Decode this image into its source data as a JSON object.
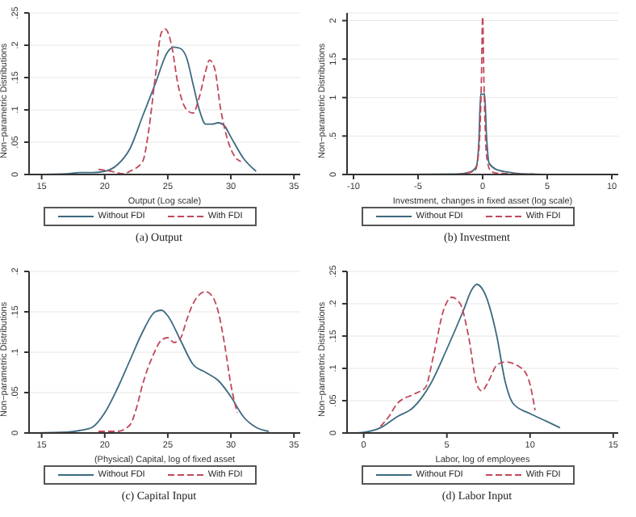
{
  "chart_data": [
    {
      "type": "line",
      "title": "(a) Output",
      "xlabel": "Output (Log scale)",
      "ylabel": "Non−parametric Distributions",
      "xlim": [
        14,
        35.5
      ],
      "xticks": [
        15,
        20,
        25,
        30,
        35
      ],
      "ylim": [
        0,
        0.25
      ],
      "yticks": [
        0,
        {
          "value": 0.05,
          "label": ".05"
        },
        {
          "value": 0.1,
          "label": ".1"
        },
        {
          "value": 0.15,
          "label": ".15"
        },
        {
          "value": 0.2,
          "label": ".2"
        },
        {
          "value": 0.25,
          "label": ".25"
        }
      ],
      "grid": "y",
      "legend": "bottom",
      "series": [
        {
          "name": "Without FDI",
          "color": "#3d6a80",
          "line_style": "solid",
          "x": [
            14.5,
            17,
            18,
            19,
            20,
            21,
            22,
            23,
            24,
            25,
            25.5,
            26,
            26.5,
            27,
            27.5,
            28,
            28.5,
            29,
            29.5,
            30,
            31,
            32
          ],
          "values": [
            0,
            0.001,
            0.003,
            0.003,
            0.005,
            0.015,
            0.04,
            0.09,
            0.14,
            0.19,
            0.197,
            0.195,
            0.18,
            0.14,
            0.1,
            0.078,
            0.078,
            0.08,
            0.075,
            0.058,
            0.025,
            0.005
          ]
        },
        {
          "name": "With FDI",
          "color": "#c0485a",
          "line_style": "dashed",
          "x": [
            19.5,
            20.5,
            21.5,
            22,
            23,
            23.5,
            24,
            24.5,
            24.8,
            25.3,
            25.8,
            26.5,
            27,
            27.5,
            28,
            28.3,
            28.7,
            29.2,
            29.8,
            30.3,
            30.8
          ],
          "values": [
            0.008,
            0.005,
            0.001,
            0.005,
            0.02,
            0.07,
            0.15,
            0.22,
            0.225,
            0.2,
            0.14,
            0.1,
            0.095,
            0.12,
            0.16,
            0.177,
            0.165,
            0.1,
            0.05,
            0.028,
            0.02
          ]
        }
      ]
    },
    {
      "type": "line",
      "title": "(b) Investment",
      "xlabel": "Investment, changes in fixed asset (log scale)",
      "ylabel": "Non−parametric Distributions",
      "xlim": [
        -10.5,
        10.5
      ],
      "xticks": [
        -10,
        -5,
        0,
        5,
        10
      ],
      "ylim": [
        0,
        2.1
      ],
      "yticks": [
        0,
        {
          "value": 0.5,
          "label": ".5"
        },
        1,
        1.5,
        2
      ],
      "grid": "y",
      "legend": "bottom",
      "series": [
        {
          "name": "Without FDI",
          "color": "#3d6a80",
          "line_style": "solid",
          "x": [
            -8.5,
            -2,
            -1,
            -0.5,
            -0.3,
            -0.15,
            0,
            0.15,
            0.3,
            0.5,
            1,
            2,
            3,
            4,
            5,
            10
          ],
          "values": [
            0,
            0.005,
            0.03,
            0.1,
            0.4,
            1.05,
            1.04,
            1.05,
            0.5,
            0.15,
            0.07,
            0.03,
            0.01,
            0.005,
            0.002,
            0
          ]
        },
        {
          "name": "With FDI",
          "color": "#c0485a",
          "line_style": "dashed",
          "x": [
            -2,
            -0.6,
            -0.3,
            -0.1,
            0,
            0.1,
            0.3,
            0.6,
            1,
            2,
            3,
            4
          ],
          "values": [
            0,
            0.05,
            0.3,
            1.2,
            2.05,
            1.2,
            0.25,
            0.05,
            0.02,
            0.01,
            0.005,
            0.002
          ]
        }
      ]
    },
    {
      "type": "line",
      "title": "(c) Capital Input",
      "xlabel": "(Physical) Capital, log of fixed asset",
      "ylabel": "Non−parametric Distributions",
      "xlim": [
        14,
        35.5
      ],
      "xticks": [
        15,
        20,
        25,
        30,
        35
      ],
      "ylim": [
        0,
        0.2
      ],
      "yticks": [
        0,
        {
          "value": 0.05,
          "label": ".05"
        },
        {
          "value": 0.1,
          "label": ".1"
        },
        {
          "value": 0.15,
          "label": ".15"
        },
        {
          "value": 0.2,
          "label": ".2"
        }
      ],
      "grid": "y",
      "legend": "bottom",
      "series": [
        {
          "name": "Without FDI",
          "color": "#3d6a80",
          "line_style": "solid",
          "x": [
            14.5,
            17,
            18,
            19,
            20,
            21,
            22,
            23,
            24,
            24.5,
            25,
            26,
            27,
            28,
            29,
            30,
            31,
            32,
            33
          ],
          "values": [
            0,
            0.001,
            0.003,
            0.007,
            0.025,
            0.055,
            0.09,
            0.125,
            0.15,
            0.152,
            0.145,
            0.115,
            0.085,
            0.075,
            0.065,
            0.045,
            0.02,
            0.007,
            0.002
          ]
        },
        {
          "name": "With FDI",
          "color": "#c0485a",
          "line_style": "dashed",
          "x": [
            19.5,
            21,
            22,
            22.5,
            23,
            23.8,
            24.5,
            25,
            25.5,
            26,
            26.5,
            27,
            28,
            28.5,
            29,
            29.5,
            30,
            30.5
          ],
          "values": [
            0.002,
            0.002,
            0.01,
            0.03,
            0.06,
            0.095,
            0.115,
            0.118,
            0.112,
            0.117,
            0.14,
            0.16,
            0.175,
            0.17,
            0.15,
            0.11,
            0.06,
            0.025
          ]
        }
      ]
    },
    {
      "type": "line",
      "title": "(d) Labor Input",
      "xlabel": "Labor, log of employees",
      "ylabel": "Non−parametric Distributions",
      "xlim": [
        -1,
        15.3
      ],
      "xticks": [
        0,
        5,
        10,
        15
      ],
      "ylim": [
        0,
        0.25
      ],
      "yticks": [
        0,
        {
          "value": 0.05,
          "label": ".05"
        },
        {
          "value": 0.1,
          "label": ".1"
        },
        {
          "value": 0.15,
          "label": ".15"
        },
        {
          "value": 0.2,
          "label": ".2"
        },
        {
          "value": 0.25,
          "label": ".25"
        }
      ],
      "grid": "y",
      "legend": "bottom",
      "series": [
        {
          "name": "Without FDI",
          "color": "#3d6a80",
          "line_style": "solid",
          "x": [
            -0.5,
            0,
            1,
            2,
            3,
            4,
            5,
            6,
            6.5,
            6.8,
            7.2,
            8,
            8.5,
            9,
            10,
            11,
            11.8
          ],
          "values": [
            0,
            0.001,
            0.008,
            0.025,
            0.04,
            0.075,
            0.13,
            0.19,
            0.222,
            0.23,
            0.22,
            0.15,
            0.08,
            0.045,
            0.03,
            0.018,
            0.008
          ]
        },
        {
          "name": "With FDI",
          "color": "#c0485a",
          "line_style": "dashed",
          "x": [
            1,
            1.5,
            2,
            3,
            3.7,
            4.2,
            4.8,
            5.3,
            5.8,
            6.3,
            6.8,
            7.1,
            7.5,
            8,
            8.5,
            9.5,
            10,
            10.3
          ],
          "values": [
            0.01,
            0.025,
            0.045,
            0.06,
            0.07,
            0.12,
            0.19,
            0.21,
            0.2,
            0.15,
            0.075,
            0.065,
            0.08,
            0.105,
            0.11,
            0.1,
            0.075,
            0.035
          ]
        }
      ]
    }
  ]
}
